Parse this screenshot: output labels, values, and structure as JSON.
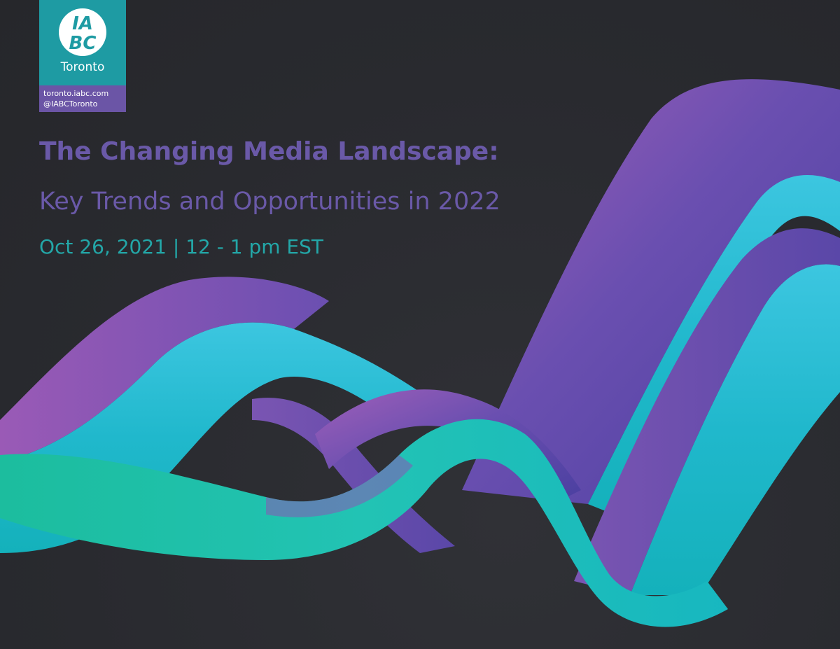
{
  "logo": {
    "mark_text": [
      "IA",
      "BC"
    ],
    "city": "Toronto",
    "links": [
      "toronto.iabc.com",
      "@IABCToronto"
    ],
    "colors": {
      "teal": "#1e9ba3",
      "purple": "#6b55a6"
    }
  },
  "event": {
    "title_main": "The Changing Media Landscape:",
    "title_sub": "Key Trends and Opportunities in 2022",
    "datetime": "Oct 26, 2021  |  12 - 1 pm EST"
  },
  "colors": {
    "background": "#2b2c31",
    "title": "#6a59a8",
    "date": "#23a7a8",
    "ribbon_purple": "#6a4fb0",
    "ribbon_teal": "#1fc3c4",
    "ribbon_magenta": "#a35fb8",
    "ribbon_green": "#19bda0"
  }
}
